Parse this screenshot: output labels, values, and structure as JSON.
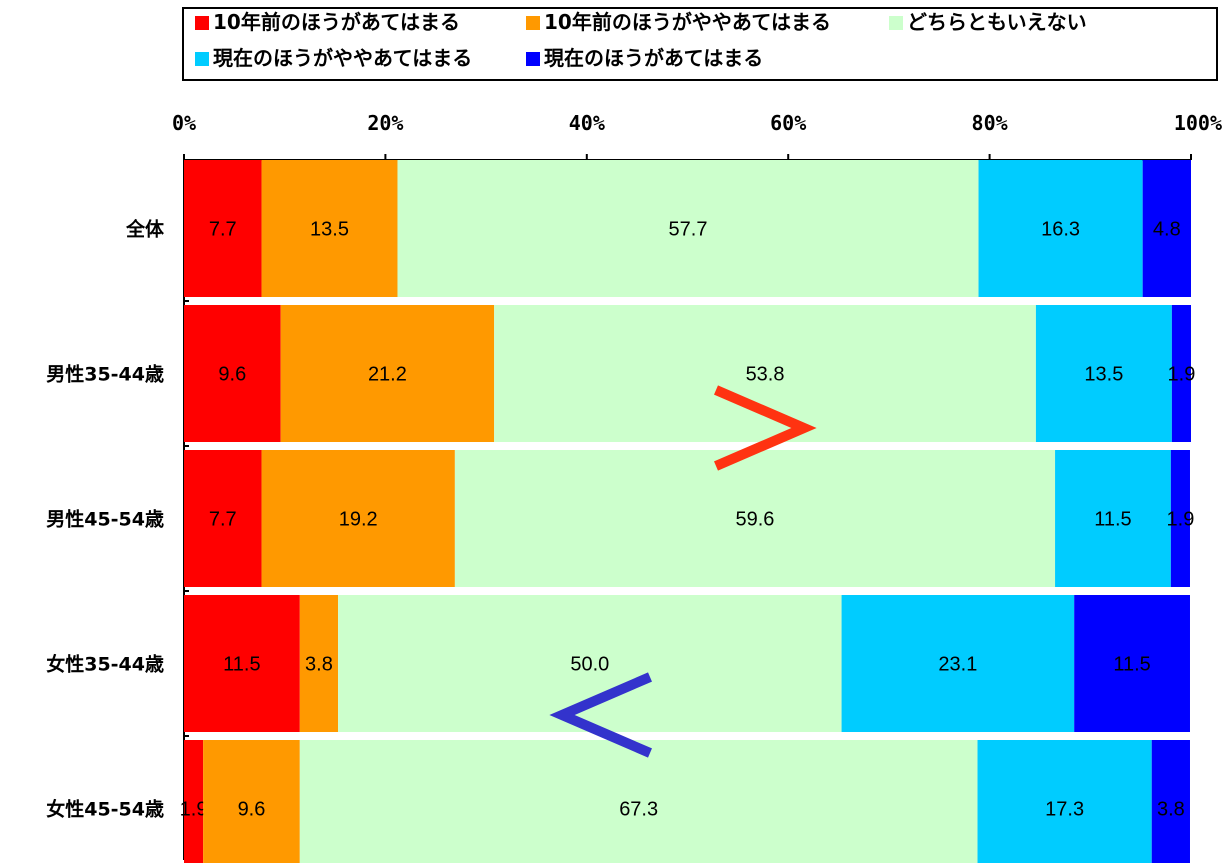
{
  "chart_data": {
    "type": "bar",
    "orientation": "horizontal",
    "stacked": "percent",
    "categories": [
      "全体",
      "男性35-44歳",
      "男性45-54歳",
      "女性35-44歳",
      "女性45-54歳"
    ],
    "series": [
      {
        "name": "10年前のほうがあてはまる",
        "color": "#ff0000",
        "values": [
          7.7,
          9.6,
          7.7,
          11.5,
          1.9
        ]
      },
      {
        "name": "10年前のほうがややあてはまる",
        "color": "#ff9900",
        "values": [
          13.5,
          21.2,
          19.2,
          3.8,
          9.6
        ]
      },
      {
        "name": "どちらともいえない",
        "color": "#ccffcc",
        "values": [
          57.7,
          53.8,
          59.6,
          50.0,
          67.3
        ]
      },
      {
        "name": "現在のほうがややあてはまる",
        "color": "#00ccff",
        "values": [
          16.3,
          13.5,
          11.5,
          23.1,
          17.3
        ]
      },
      {
        "name": "現在のほうがあてはまる",
        "color": "#0000ff",
        "values": [
          4.8,
          1.9,
          1.9,
          11.5,
          3.8
        ]
      }
    ],
    "data_labels": [
      [
        "7.7",
        "13.5",
        "57.7",
        "16.3",
        "4.8"
      ],
      [
        "9.6",
        "21.2",
        "53.8",
        "13.5",
        "1.9"
      ],
      [
        "7.7",
        "19.2",
        "59.6",
        "11.5",
        "1.9"
      ],
      [
        "11.5",
        "3.8",
        "50.0",
        "23.1",
        "11.5"
      ],
      [
        "1.9",
        "9.6",
        "67.3",
        "17.3",
        "3.8"
      ]
    ],
    "xlim": [
      0,
      100
    ],
    "x_ticks": [
      "0%",
      "20%",
      "40%",
      "60%",
      "80%",
      "100%"
    ],
    "x_axis_position": "top",
    "grid": false,
    "legend": {
      "placement": "top",
      "columns": 3
    },
    "annotations": [
      {
        "text": ">",
        "color": "#ff3311",
        "between": [
          "男性35-44歳",
          "男性45-54歳"
        ]
      },
      {
        "text": "<",
        "color": "#3333cc",
        "between": [
          "女性35-44歳",
          "女性45-54歳"
        ]
      }
    ]
  }
}
